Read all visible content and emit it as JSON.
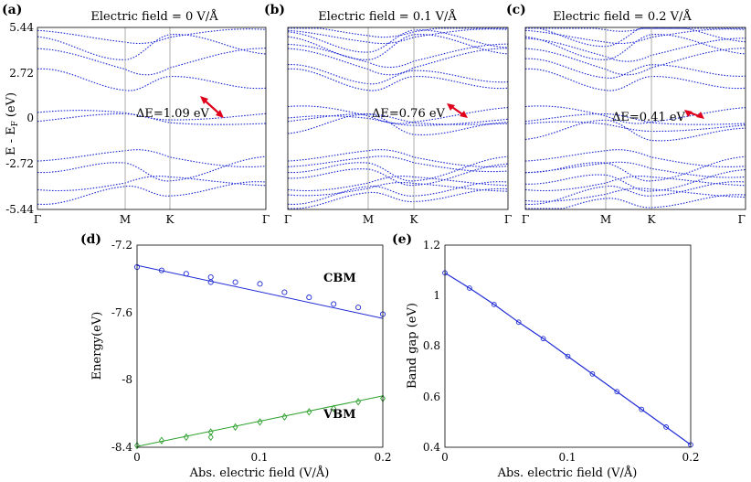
{
  "chart_data": [
    {
      "panel": "(a)",
      "type": "line",
      "title": "Electric field = 0 V/Å",
      "ylabel": "E - E",
      "ylabel_sub": "F",
      "ylabel_unit": "(eV)",
      "yticks": [
        "5.44",
        "2.72",
        "0",
        "-2.72",
        "-5.44"
      ],
      "ylim": [
        -5.44,
        5.44
      ],
      "kpoints": [
        "Γ",
        "M",
        "K",
        "Γ"
      ],
      "gap_label": "ΔE=1.09 eV",
      "series_color": "#1f2bd6"
    },
    {
      "panel": "(b)",
      "type": "line",
      "title": "Electric field = 0.1 V/Å",
      "ylim": [
        -5.44,
        5.44
      ],
      "kpoints": [
        "Γ",
        "M",
        "K",
        "Γ"
      ],
      "gap_label": "ΔE=0.76 eV",
      "series_color": "#1f2bd6"
    },
    {
      "panel": "(c)",
      "type": "line",
      "title": "Electric field = 0.2 V/Å",
      "ylim": [
        -5.44,
        5.44
      ],
      "kpoints": [
        "Γ",
        "M",
        "K",
        "Γ"
      ],
      "gap_label": "ΔE=0.41 eV",
      "series_color": "#1f2bd6"
    },
    {
      "panel": "(d)",
      "type": "scatter",
      "xlabel": "Abs. electric field (V/Å)",
      "ylabel": "Energy(eV)",
      "xlim": [
        0,
        0.2
      ],
      "ylim": [
        -8.4,
        -7.2
      ],
      "xticks": [
        "0",
        "0.1",
        "0.2"
      ],
      "yticks": [
        "-7.2",
        "-7.6",
        "-8",
        "-8.4"
      ],
      "series": [
        {
          "name": "CBM",
          "color": "#1f2bd6",
          "marker": "circle",
          "x": [
            0,
            0.02,
            0.04,
            0.06,
            0.06,
            0.08,
            0.1,
            0.12,
            0.14,
            0.16,
            0.18,
            0.2
          ],
          "y": [
            -7.33,
            -7.35,
            -7.37,
            -7.39,
            -7.42,
            -7.42,
            -7.43,
            -7.48,
            -7.51,
            -7.55,
            -7.57,
            -7.61
          ],
          "fit": [
            [
              0,
              -7.32
            ],
            [
              0.2,
              -7.635
            ]
          ]
        },
        {
          "name": "VBM",
          "color": "#2ca02c",
          "marker": "diamond",
          "x": [
            0,
            0.02,
            0.04,
            0.06,
            0.06,
            0.08,
            0.1,
            0.12,
            0.14,
            0.16,
            0.18,
            0.2
          ],
          "y": [
            -8.39,
            -8.36,
            -8.34,
            -8.31,
            -8.34,
            -8.28,
            -8.25,
            -8.22,
            -8.19,
            -8.17,
            -8.13,
            -8.11
          ],
          "fit": [
            [
              0,
              -8.395
            ],
            [
              0.2,
              -8.095
            ]
          ]
        }
      ]
    },
    {
      "panel": "(e)",
      "type": "line",
      "xlabel": "Abs. electric field (V/Å)",
      "ylabel": "Band gap (eV)",
      "xlim": [
        0,
        0.2
      ],
      "ylim": [
        0.4,
        1.2
      ],
      "xticks": [
        "0",
        "0.1",
        "0.2"
      ],
      "yticks": [
        "1.2",
        "1",
        "0.8",
        "0.6",
        "0.4"
      ],
      "series": [
        {
          "name": "",
          "color": "#1f2bd6",
          "x": [
            0,
            0.02,
            0.04,
            0.06,
            0.08,
            0.1,
            0.12,
            0.14,
            0.16,
            0.18,
            0.2
          ],
          "y": [
            1.09,
            1.03,
            0.965,
            0.895,
            0.83,
            0.76,
            0.69,
            0.62,
            0.55,
            0.48,
            0.41
          ]
        }
      ]
    }
  ]
}
